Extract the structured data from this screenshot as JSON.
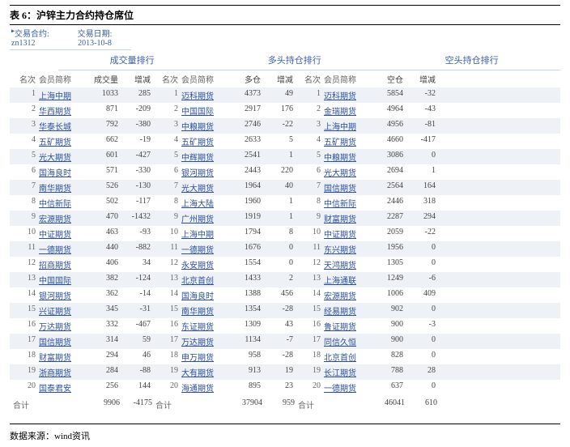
{
  "title": "表 6：沪锌主力合约持仓席位",
  "contract": {
    "label": "交易合约:",
    "value": "zn1312"
  },
  "date": {
    "label": "交易日期:",
    "value": "2013-10-8"
  },
  "sections": {
    "vol": "成交量排行",
    "long": "多头持仓排行",
    "short": "空头持仓排行"
  },
  "cols": {
    "rank": "名次",
    "member": "会员简称",
    "vol": "成交量",
    "chg": "增减",
    "long": "多仓",
    "short": "空仓"
  },
  "rows": [
    {
      "r": 1,
      "vm": "上海中期",
      "vv": 1033,
      "vc": 285,
      "lr": 1,
      "lm": "迈科期货",
      "lv": 4373,
      "lc": 49,
      "sr": 1,
      "sm": "迈科期货",
      "sv": 5854,
      "sc": -32
    },
    {
      "r": 2,
      "vm": "华西期货",
      "vv": 871,
      "vc": -209,
      "lr": 2,
      "lm": "中国国际",
      "lv": 2917,
      "lc": 176,
      "sr": 2,
      "sm": "金瑞期货",
      "sv": 4964,
      "sc": -43
    },
    {
      "r": 3,
      "vm": "华泰长城",
      "vv": 792,
      "vc": -380,
      "lr": 3,
      "lm": "中粮期货",
      "lv": 2746,
      "lc": -22,
      "sr": 3,
      "sm": "上海中期",
      "sv": 4956,
      "sc": -81
    },
    {
      "r": 4,
      "vm": "五矿期货",
      "vv": 662,
      "vc": -19,
      "lr": 4,
      "lm": "五矿期货",
      "lv": 2633,
      "lc": 5,
      "sr": 4,
      "sm": "五矿期货",
      "sv": 4660,
      "sc": -417
    },
    {
      "r": 5,
      "vm": "光大期货",
      "vv": 601,
      "vc": -427,
      "lr": 5,
      "lm": "中辉期货",
      "lv": 2541,
      "lc": 1,
      "sr": 5,
      "sm": "中粮期货",
      "sv": 3086,
      "sc": 0
    },
    {
      "r": 6,
      "vm": "国海良时",
      "vv": 571,
      "vc": -330,
      "lr": 6,
      "lm": "银河期货",
      "lv": 2443,
      "lc": 220,
      "sr": 6,
      "sm": "光大期货",
      "sv": 2694,
      "sc": 1
    },
    {
      "r": 7,
      "vm": "南华期货",
      "vv": 526,
      "vc": -130,
      "lr": 7,
      "lm": "光大期货",
      "lv": 1964,
      "lc": 40,
      "sr": 7,
      "sm": "国信期货",
      "sv": 2564,
      "sc": 164
    },
    {
      "r": 8,
      "vm": "中信新际",
      "vv": 502,
      "vc": -117,
      "lr": 8,
      "lm": "上海大陆",
      "lv": 1960,
      "lc": 1,
      "sr": 8,
      "sm": "中信新际",
      "sv": 2446,
      "sc": 318
    },
    {
      "r": 9,
      "vm": "宏源期货",
      "vv": 470,
      "vc": -1432,
      "lr": 9,
      "lm": "广州期货",
      "lv": 1919,
      "lc": 1,
      "sr": 9,
      "sm": "财富期货",
      "sv": 2287,
      "sc": 294
    },
    {
      "r": 10,
      "vm": "中证期货",
      "vv": 463,
      "vc": -93,
      "lr": 10,
      "lm": "上海中期",
      "lv": 1794,
      "lc": 8,
      "sr": 10,
      "sm": "中证期货",
      "sv": 2059,
      "sc": -22
    },
    {
      "r": 11,
      "vm": "一德期货",
      "vv": 440,
      "vc": -882,
      "lr": 11,
      "lm": "一德期货",
      "lv": 1676,
      "lc": 0,
      "sr": 11,
      "sm": "东兴期货",
      "sv": 1956,
      "sc": 0
    },
    {
      "r": 12,
      "vm": "招商期货",
      "vv": 406,
      "vc": 34,
      "lr": 12,
      "lm": "永安期货",
      "lv": 1554,
      "lc": 0,
      "sr": 12,
      "sm": "天鸿期货",
      "sv": 1305,
      "sc": 0
    },
    {
      "r": 13,
      "vm": "中国国际",
      "vv": 382,
      "vc": -124,
      "lr": 13,
      "lm": "北京首创",
      "lv": 1433,
      "lc": 2,
      "sr": 13,
      "sm": "上海通联",
      "sv": 1249,
      "sc": -6
    },
    {
      "r": 14,
      "vm": "银河期货",
      "vv": 362,
      "vc": -14,
      "lr": 14,
      "lm": "国海良时",
      "lv": 1388,
      "lc": 456,
      "sr": 14,
      "sm": "宏源期货",
      "sv": 1006,
      "sc": 409
    },
    {
      "r": 15,
      "vm": "兴证期货",
      "vv": 345,
      "vc": -31,
      "lr": 15,
      "lm": "南华期货",
      "lv": 1354,
      "lc": -28,
      "sr": 15,
      "sm": "经易期货",
      "sv": 902,
      "sc": 0
    },
    {
      "r": 16,
      "vm": "万达期货",
      "vv": 332,
      "vc": -467,
      "lr": 16,
      "lm": "东证期货",
      "lv": 1309,
      "lc": 43,
      "sr": 16,
      "sm": "鲁证期货",
      "sv": 900,
      "sc": -3
    },
    {
      "r": 17,
      "vm": "国信期货",
      "vv": 314,
      "vc": 59,
      "lr": 17,
      "lm": "万达期货",
      "lv": 1134,
      "lc": -7,
      "sr": 17,
      "sm": "同信久恒",
      "sv": 900,
      "sc": 0
    },
    {
      "r": 18,
      "vm": "财富期货",
      "vv": 294,
      "vc": 46,
      "lr": 18,
      "lm": "申万期货",
      "lv": 958,
      "lc": -28,
      "sr": 18,
      "sm": "北京首创",
      "sv": 828,
      "sc": 0
    },
    {
      "r": 19,
      "vm": "浙商期货",
      "vv": 284,
      "vc": -88,
      "lr": 19,
      "lm": "大有期货",
      "lv": 913,
      "lc": 19,
      "sr": 19,
      "sm": "长江期货",
      "sv": 788,
      "sc": 28
    },
    {
      "r": 20,
      "vm": "国泰君安",
      "vv": 256,
      "vc": 144,
      "lr": 20,
      "lm": "海通期货",
      "lv": 895,
      "lc": 23,
      "sr": 20,
      "sm": "一德期货",
      "sv": 637,
      "sc": 0
    }
  ],
  "totals": {
    "label": "合计",
    "vv": 9906,
    "vc": -4175,
    "lv": 37904,
    "lc": 959,
    "sv": 46041,
    "sc": 610
  },
  "footer": "数据来源：wind资讯"
}
